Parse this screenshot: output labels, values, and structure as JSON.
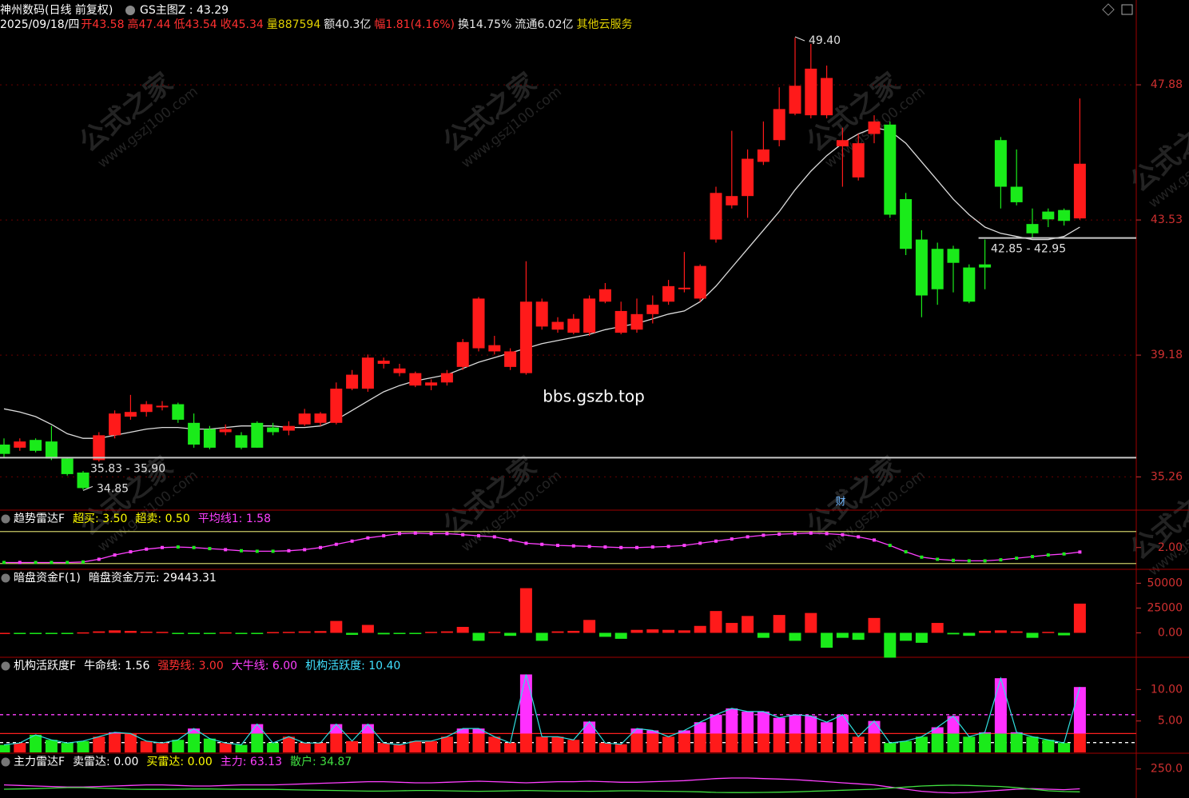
{
  "watermark": [
    "公式之家",
    "www.gszj100.com"
  ],
  "chart_data": [
    {
      "type": "candlestick",
      "title": "神州数码(日线 前复权)",
      "indicator": "GS主图Z : 43.29",
      "date": "2025/09/18/四",
      "quote": [
        {
          "text": "开43.58",
          "color": "#ff3030"
        },
        {
          "text": "高47.44",
          "color": "#ff3030"
        },
        {
          "text": "低43.54",
          "color": "#ff3030"
        },
        {
          "text": "收45.34",
          "color": "#ff3030"
        },
        {
          "text": "量887594",
          "color": "#e0d000"
        },
        {
          "text": "额40.3亿",
          "color": "#e8e8e8"
        },
        {
          "text": "幅1.81(4.16%)",
          "color": "#ff3030"
        },
        {
          "text": "换14.75%",
          "color": "#e8e8e8"
        },
        {
          "text": "流通6.02亿",
          "color": "#e8e8e8"
        },
        {
          "text": "其他云服务",
          "color": "#e0d000"
        }
      ],
      "open": [
        36.3,
        36.2,
        36.45,
        36.4,
        35.85,
        35.4,
        35.8,
        36.6,
        37.2,
        37.35,
        37.5,
        37.6,
        37.0,
        36.8,
        36.7,
        36.6,
        37.0,
        36.85,
        36.75,
        36.95,
        37.0,
        37.0,
        38.1,
        38.1,
        38.9,
        38.6,
        38.2,
        38.2,
        38.3,
        38.8,
        39.4,
        39.3,
        38.8,
        38.6,
        40.1,
        40.0,
        39.9,
        39.9,
        40.9,
        39.9,
        40.0,
        40.5,
        40.9,
        41.3,
        41.0,
        42.9,
        44.0,
        44.3,
        45.4,
        46.1,
        46.95,
        46.9,
        46.9,
        45.9,
        44.9,
        46.3,
        46.6,
        44.2,
        42.9,
        42.6,
        42.6,
        42.0,
        42.1,
        46.1,
        44.6,
        43.4,
        43.8,
        43.85,
        43.58
      ],
      "high": [
        36.5,
        36.5,
        36.5,
        36.9,
        35.9,
        35.45,
        36.7,
        37.4,
        37.9,
        37.7,
        37.7,
        37.65,
        37.3,
        36.9,
        36.95,
        36.7,
        37.05,
        37.0,
        37.05,
        37.45,
        37.35,
        38.3,
        38.7,
        39.2,
        39.1,
        38.9,
        38.65,
        38.4,
        38.7,
        39.7,
        41.05,
        39.8,
        39.4,
        42.2,
        41.0,
        40.4,
        40.5,
        41.1,
        41.5,
        40.9,
        41.0,
        41.1,
        41.6,
        42.5,
        42.1,
        44.6,
        46.4,
        45.8,
        46.7,
        47.8,
        49.4,
        49.2,
        48.5,
        46.5,
        46.3,
        46.9,
        46.7,
        44.4,
        43.2,
        42.8,
        42.7,
        42.1,
        42.9,
        46.2,
        45.8,
        43.9,
        43.9,
        43.9,
        47.44
      ],
      "low": [
        35.9,
        36.1,
        36.05,
        35.8,
        35.3,
        34.85,
        35.75,
        36.5,
        37.1,
        37.2,
        37.4,
        37.0,
        36.2,
        36.15,
        36.6,
        36.15,
        36.2,
        36.6,
        36.6,
        36.9,
        36.9,
        36.95,
        38.05,
        38.0,
        38.75,
        38.5,
        38.15,
        38.05,
        38.2,
        38.7,
        39.3,
        39.2,
        38.7,
        38.55,
        40.0,
        39.9,
        39.85,
        39.8,
        40.85,
        39.85,
        39.9,
        40.2,
        40.8,
        41.2,
        40.9,
        42.8,
        43.9,
        43.6,
        45.3,
        45.9,
        46.9,
        46.8,
        46.8,
        44.6,
        44.8,
        46.0,
        43.6,
        42.4,
        40.4,
        40.8,
        41.2,
        40.85,
        41.3,
        43.9,
        44.0,
        42.95,
        43.3,
        43.35,
        43.54
      ],
      "close": [
        36.0,
        36.4,
        36.1,
        35.85,
        35.35,
        34.9,
        36.6,
        37.3,
        37.35,
        37.6,
        37.55,
        37.1,
        36.3,
        36.2,
        36.8,
        36.2,
        36.2,
        36.7,
        36.9,
        37.3,
        37.3,
        38.1,
        38.55,
        39.1,
        39.0,
        38.75,
        38.6,
        38.3,
        38.6,
        39.6,
        41.0,
        39.5,
        39.3,
        40.9,
        40.9,
        40.25,
        40.35,
        41.0,
        41.3,
        40.6,
        40.5,
        40.8,
        41.4,
        41.35,
        42.05,
        44.4,
        44.3,
        45.5,
        45.8,
        47.1,
        47.85,
        48.4,
        48.1,
        46.1,
        46.0,
        46.7,
        43.7,
        42.6,
        41.1,
        41.3,
        42.15,
        40.9,
        42.0,
        44.6,
        44.1,
        43.1,
        43.55,
        43.5,
        45.34
      ],
      "up_color": "#ff1a1a",
      "down_color": "#1aeb1a",
      "ma": [
        37.45,
        37.35,
        37.2,
        36.95,
        36.65,
        36.5,
        36.5,
        36.6,
        36.7,
        36.8,
        36.85,
        36.85,
        36.8,
        36.8,
        36.85,
        36.9,
        36.9,
        36.9,
        36.85,
        36.85,
        36.9,
        37.1,
        37.4,
        37.7,
        38.0,
        38.2,
        38.35,
        38.45,
        38.55,
        38.75,
        38.95,
        39.1,
        39.25,
        39.4,
        39.55,
        39.65,
        39.75,
        39.85,
        40.0,
        40.1,
        40.2,
        40.35,
        40.5,
        40.6,
        40.9,
        41.4,
        42.0,
        42.6,
        43.2,
        43.8,
        44.5,
        45.1,
        45.6,
        46.0,
        46.3,
        46.5,
        46.4,
        46.0,
        45.4,
        44.8,
        44.2,
        43.7,
        43.3,
        43.1,
        43.0,
        42.9,
        42.9,
        43.0,
        43.3
      ],
      "ma_color": "#dcdcdc",
      "ylim": [
        34.19,
        50.61
      ],
      "yticks": [
        47.88,
        43.53,
        39.18,
        35.26
      ],
      "grid": true,
      "max_label": {
        "value": 49.4,
        "label": "49.40"
      },
      "min_label": {
        "value": 34.85,
        "label": "34.85"
      },
      "ranges": [
        {
          "label": "35.83 - 35.90",
          "value": 35.88,
          "start": 0
        },
        {
          "label": "42.85 - 42.95",
          "value": 42.95,
          "start": 62
        }
      ],
      "annotation": "bbs.gszb.top",
      "event_label": "财"
    },
    {
      "type": "line",
      "title": "趋势雷达F",
      "legend": [
        {
          "text": "超买: 3.50",
          "color": "#ffff00"
        },
        {
          "text": "超卖: 0.50",
          "color": "#ffff00"
        },
        {
          "text": "平均线1: 1.58",
          "color": "#ff40ff"
        }
      ],
      "values": [
        0.6,
        0.6,
        0.6,
        0.6,
        0.6,
        0.65,
        0.9,
        1.3,
        1.6,
        1.85,
        2.0,
        2.05,
        2.0,
        1.9,
        1.8,
        1.7,
        1.65,
        1.65,
        1.7,
        1.8,
        2.0,
        2.3,
        2.6,
        2.9,
        3.1,
        3.3,
        3.35,
        3.3,
        3.3,
        3.2,
        3.1,
        3.0,
        2.7,
        2.4,
        2.3,
        2.2,
        2.15,
        2.1,
        2.05,
        2.0,
        2.0,
        2.05,
        2.1,
        2.2,
        2.4,
        2.6,
        2.8,
        3.0,
        3.15,
        3.25,
        3.3,
        3.35,
        3.3,
        3.2,
        3.0,
        2.7,
        2.2,
        1.6,
        1.1,
        0.9,
        0.8,
        0.75,
        0.75,
        0.85,
        1.0,
        1.15,
        1.3,
        1.4,
        1.58
      ],
      "color": "#ff40ff",
      "hlines": [
        {
          "value": 3.5,
          "color": "#c8c864"
        },
        {
          "value": 0.5,
          "color": "#c8c864"
        }
      ],
      "ylim": [
        -0.04,
        5.5
      ],
      "yticks": [
        {
          "value": 2,
          "label": "2.00"
        }
      ]
    },
    {
      "type": "bar",
      "title": "暗盘资金F(1)",
      "legend": [
        {
          "text": "暗盘资金万元: 29443.31",
          "color": "#ffffff"
        }
      ],
      "values": [
        0,
        -300,
        -500,
        -400,
        -200,
        500,
        1500,
        2500,
        2000,
        1200,
        1000,
        -800,
        -1200,
        -600,
        500,
        -700,
        -300,
        800,
        1000,
        1500,
        1800,
        12000,
        -2000,
        8000,
        -1500,
        -1200,
        -500,
        1000,
        1500,
        6000,
        -8000,
        1000,
        -3000,
        45000,
        -8000,
        1500,
        2000,
        13000,
        -4000,
        -6000,
        3000,
        3500,
        3000,
        2500,
        7000,
        22000,
        10000,
        17000,
        -5000,
        18000,
        -8000,
        20000,
        -15000,
        -5000,
        -7000,
        15000,
        -25000,
        -8000,
        -10000,
        10000,
        -1500,
        -3000,
        2000,
        2500,
        1500,
        -5000,
        1000,
        -2500,
        29443.31
      ],
      "up_color": "#ff1a1a",
      "down_color": "#1aeb1a",
      "ylim": [
        -24600,
        64000
      ],
      "yticks": [
        50000,
        25000,
        {
          "value": 0,
          "label": "0.00"
        }
      ]
    },
    {
      "type": "barline",
      "title": "机构活跃度F",
      "legend": [
        {
          "text": "牛命线: 1.56",
          "color": "#ffffff"
        },
        {
          "text": "强势线: 3.00",
          "color": "#ff3030"
        },
        {
          "text": "大牛线: 6.00",
          "color": "#ff40ff"
        },
        {
          "text": "机构活跃度: 10.40",
          "color": "#40e0ff"
        }
      ],
      "values": [
        1.2,
        1.5,
        2.8,
        2.0,
        1.5,
        1.8,
        2.5,
        3.2,
        3.0,
        1.8,
        1.5,
        2.0,
        3.8,
        2.2,
        1.5,
        1.2,
        4.5,
        1.5,
        2.5,
        1.5,
        1.5,
        4.5,
        1.8,
        4.5,
        1.5,
        1.2,
        1.8,
        1.8,
        2.5,
        3.8,
        3.8,
        2.5,
        1.5,
        12.4,
        2.5,
        2.5,
        2.0,
        4.9,
        1.5,
        1.3,
        3.8,
        3.5,
        2.5,
        3.5,
        4.8,
        6.0,
        7.0,
        6.5,
        6.5,
        5.5,
        6.0,
        5.8,
        4.8,
        6.0,
        2.5,
        5.0,
        1.5,
        1.8,
        2.5,
        4.0,
        5.8,
        2.5,
        3.2,
        11.8,
        3.2,
        2.5,
        2.0,
        1.5,
        10.4
      ],
      "up_color": "#ff1a1a",
      "down_color": "#1aeb1a",
      "high_color": "#ff30ff",
      "line_color": "#30e0e0",
      "hlines": [
        {
          "value": 1.56,
          "color": "#ffffff",
          "dash": true
        },
        {
          "value": 3,
          "color": "#ff2020"
        },
        {
          "value": 6,
          "color": "#ff40ff",
          "dash": true
        }
      ],
      "ylim": [
        -0.13,
        15.13
      ],
      "yticks": [
        {
          "value": 10,
          "label": "10.00"
        },
        {
          "value": 5,
          "label": "5.00"
        }
      ]
    },
    {
      "type": "line",
      "title": "主力雷达F",
      "legend": [
        {
          "text": "卖雷达: 0.00",
          "color": "#ffffff"
        },
        {
          "text": "买雷达: 0.00",
          "color": "#ffff00"
        },
        {
          "text": "主力: 63.13",
          "color": "#ff40ff"
        },
        {
          "text": "散户: 34.87",
          "color": "#40e040"
        }
      ],
      "series": [
        {
          "color": "#ff40ff",
          "values": [
            100,
            95,
            90,
            85,
            80,
            80,
            85,
            90,
            95,
            100,
            100,
            95,
            90,
            90,
            95,
            100,
            100,
            100,
            105,
            110,
            115,
            120,
            125,
            130,
            130,
            125,
            120,
            120,
            125,
            130,
            135,
            130,
            125,
            120,
            125,
            130,
            130,
            135,
            130,
            125,
            125,
            130,
            135,
            140,
            150,
            160,
            165,
            165,
            160,
            155,
            150,
            140,
            130,
            120,
            110,
            100,
            80,
            60,
            40,
            30,
            25,
            30,
            40,
            50,
            60,
            65,
            60,
            55,
            63.13
          ]
        },
        {
          "color": "#40e040",
          "values": [
            60,
            62,
            65,
            70,
            75,
            75,
            70,
            65,
            60,
            58,
            58,
            60,
            62,
            62,
            60,
            58,
            58,
            58,
            55,
            52,
            50,
            48,
            45,
            42,
            42,
            45,
            48,
            48,
            45,
            42,
            40,
            42,
            45,
            48,
            45,
            42,
            42,
            40,
            42,
            45,
            45,
            42,
            40,
            38,
            35,
            30,
            28,
            28,
            30,
            32,
            35,
            40,
            45,
            50,
            55,
            60,
            70,
            80,
            90,
            95,
            98,
            95,
            90,
            85,
            75,
            60,
            45,
            38,
            34.87
          ]
        }
      ],
      "ylim": [
        -23,
        398
      ],
      "yticks": [
        {
          "value": 250,
          "label": "250.0"
        }
      ]
    }
  ]
}
